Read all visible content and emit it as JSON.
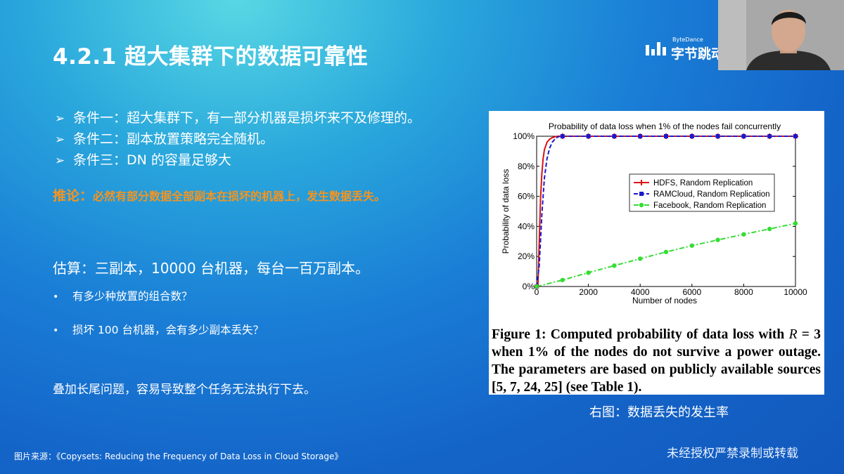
{
  "slide": {
    "title": "4.2.1 超大集群下的数据可靠性",
    "conditions": [
      "条件一：超大集群下，有一部分机器是损坏来不及修理的。",
      "条件二：副本放置策略完全随机。",
      "条件三：DN 的容量足够大"
    ],
    "inference_head": "推论：",
    "inference_text": "必然有部分数据全部副本在损坏的机器上，发生数据丢失。",
    "estimate": "估算：三副本，10000 台机器，每台一百万副本。",
    "questions": [
      "有多少种放置的组合数？",
      "损坏 100 台机器，会有多少副本丢失？"
    ],
    "long_tail": "叠加长尾问题，容易导致整个任务无法执行下去。",
    "right_caption": "右图：数据丢失的发生率",
    "source": "图片来源：《Copysets: Reducing the Frequency of Data Loss in Cloud Storage》",
    "watermark": "未经授权严禁录制或转载",
    "logo_en": "ByteDance",
    "logo_cn": "字节跳动"
  },
  "figure": {
    "caption_1": "Figure 1:  Computed probability of data loss with",
    "caption_r": "R",
    "caption_2": " = 3 when 1% of the nodes do not survive a power outage.  The parameters are based on publicly available sources [5, 7, 24, 25] (see Table 1)."
  },
  "chart_data": {
    "type": "line",
    "title": "Probability of data loss when 1% of the nodes fail concurrently",
    "xlabel": "Number of nodes",
    "ylabel": "Probability of data loss",
    "xlim": [
      0,
      10000
    ],
    "ylim": [
      0,
      100
    ],
    "x_ticks": [
      "0",
      "2000",
      "4000",
      "6000",
      "8000",
      "10000"
    ],
    "y_ticks": [
      "0%",
      "20%",
      "40%",
      "60%",
      "80%",
      "100%"
    ],
    "grid": false,
    "legend": "upper-center",
    "series": [
      {
        "name": "HDFS, Random Replication",
        "color": "#dd1111",
        "marker": "plus",
        "x": [
          0,
          50,
          100,
          150,
          200,
          250,
          300,
          400,
          500,
          600,
          700,
          800,
          1000,
          2000,
          3000,
          4000,
          5000,
          6000,
          7000,
          8000,
          9000,
          10000
        ],
        "y": [
          0,
          0,
          30,
          58,
          75,
          85,
          91,
          96,
          98,
          99,
          99.6,
          100,
          100,
          100,
          100,
          100,
          100,
          100,
          100,
          100,
          100,
          100
        ]
      },
      {
        "name": "RAMCloud, Random Replication",
        "color": "#1a1acc",
        "marker": "square",
        "x": [
          0,
          100,
          200,
          300,
          400,
          500,
          600,
          700,
          800,
          900,
          1000,
          2000,
          3000,
          4000,
          5000,
          6000,
          7000,
          8000,
          9000,
          10000
        ],
        "y": [
          0,
          14,
          48,
          72,
          85,
          92,
          96,
          98,
          99.3,
          100,
          100,
          100,
          100,
          100,
          100,
          100,
          100,
          100,
          100,
          100
        ]
      },
      {
        "name": "Facebook, Random Replication",
        "color": "#33dd33",
        "marker": "dot",
        "x": [
          0,
          1000,
          2000,
          3000,
          4000,
          5000,
          6000,
          7000,
          8000,
          9000,
          10000
        ],
        "y": [
          0,
          4.3,
          9.2,
          13.9,
          18.5,
          23,
          27.2,
          31,
          34.7,
          38.3,
          42
        ]
      }
    ]
  }
}
